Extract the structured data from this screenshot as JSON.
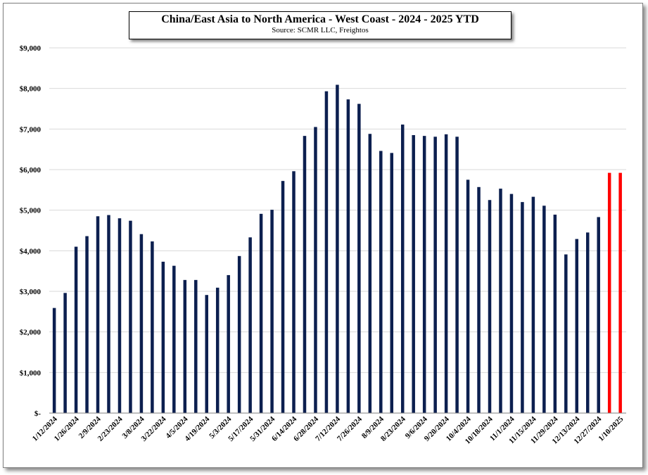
{
  "chart_data": {
    "type": "bar",
    "title": "China/East Asia to North America  - West Coast  - 2024 - 2025 YTD",
    "subtitle": "Source:  SCMR LLC, Freightos",
    "xlabel": "",
    "ylabel": "",
    "ylim": [
      0,
      9000
    ],
    "grid": true,
    "legend": "none",
    "y_ticks": [
      0,
      1000,
      2000,
      3000,
      4000,
      5000,
      6000,
      7000,
      8000,
      9000
    ],
    "y_tick_labels": [
      "$-",
      "$1,000",
      "$2,000",
      "$3,000",
      "$4,000",
      "$5,000",
      "$6,000",
      "$7,000",
      "$8,000",
      "$9,000"
    ],
    "x_tick_labels": [
      "1/12/2024",
      "1/26/2024",
      "2/9/2024",
      "2/23/2024",
      "3/8/2024",
      "3/22/2024",
      "4/5/2024",
      "4/19/2024",
      "5/3/2024",
      "5/17/2024",
      "5/31/2024",
      "6/14/2024",
      "6/28/2024",
      "7/12/2024",
      "7/26/2024",
      "8/9/2024",
      "8/23/2024",
      "9/6/2024",
      "9/20/2024",
      "10/4/2024",
      "10/18/2024",
      "11/1/2024",
      "11/15/2024",
      "11/29/2024",
      "12/13/2024",
      "12/27/2024",
      "1/10/2025"
    ],
    "colors": {
      "series_2024": "#0c1f4f",
      "series_2025": "#ff0000",
      "grid": "#d9d9d9",
      "axis": "#7f7f7f"
    },
    "series": [
      {
        "values": [
          2590,
          2960,
          4100,
          4360,
          4850,
          4880,
          4800,
          4740,
          4410,
          4230,
          3730,
          3630,
          3280,
          3280,
          2910,
          3090,
          3400,
          3870,
          4330,
          4910,
          5010,
          5720,
          5960,
          6830,
          7050,
          7930,
          8090,
          7730,
          7620,
          6880,
          6460,
          6410,
          7110,
          6850,
          6830,
          6810,
          6870,
          6810,
          5750,
          5570,
          5250,
          5530,
          5400,
          5200,
          5330,
          5110,
          4890,
          3910,
          4290,
          4450,
          4830
        ]
      },
      {
        "values": [
          5920,
          5920
        ]
      }
    ]
  }
}
